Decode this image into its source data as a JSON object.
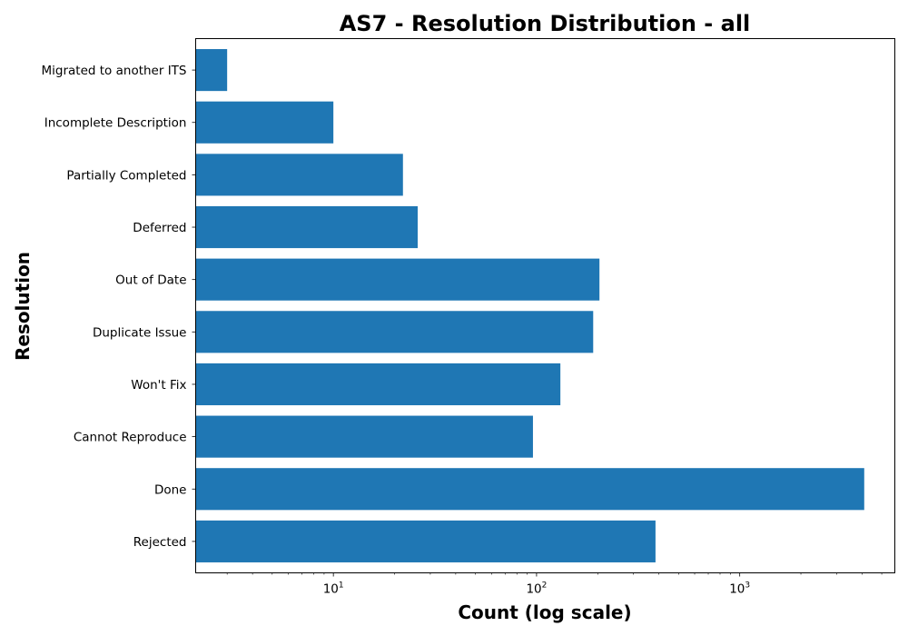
{
  "chart_data": {
    "type": "bar",
    "orientation": "horizontal",
    "title": "AS7 - Resolution Distribution - all",
    "xlabel": "Count (log scale)",
    "ylabel": "Resolution",
    "xscale": "log",
    "xlim": [
      2.1,
      5800
    ],
    "x_ticks": [
      {
        "value": 10,
        "base": "10",
        "exp": "1"
      },
      {
        "value": 100,
        "base": "10",
        "exp": "2"
      },
      {
        "value": 1000,
        "base": "10",
        "exp": "3"
      }
    ],
    "categories": [
      "Migrated to another ITS",
      "Incomplete Description",
      "Partially Completed",
      "Deferred",
      "Out of Date",
      "Duplicate Issue",
      "Won't Fix",
      "Cannot Reproduce",
      "Done",
      "Rejected"
    ],
    "values": [
      3,
      10,
      22,
      26,
      204,
      190,
      131,
      96,
      4100,
      385
    ],
    "bar_color": "#1f77b4",
    "grid": false,
    "legend": "none"
  }
}
